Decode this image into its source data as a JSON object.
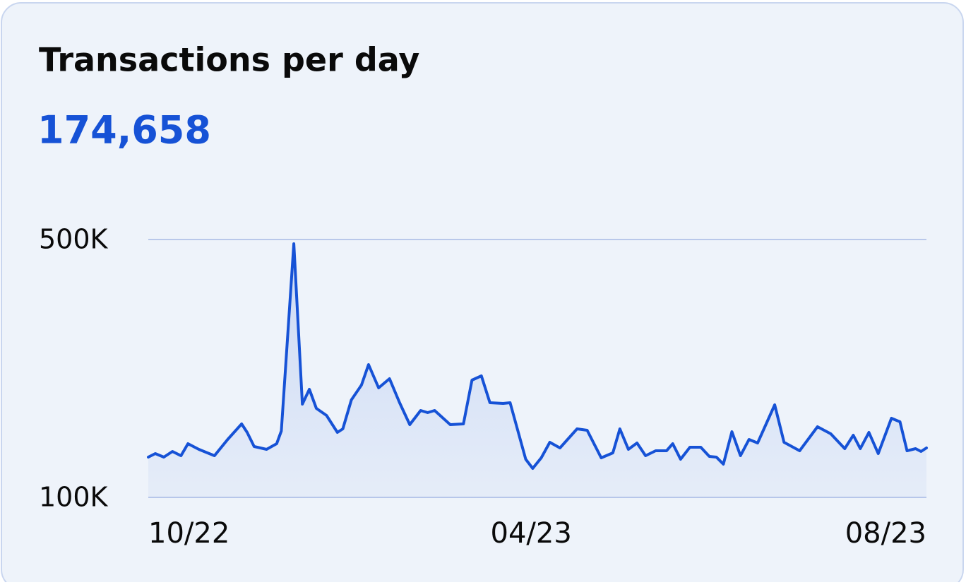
{
  "chart_data": {
    "type": "line",
    "title": "Transactions per day",
    "subtitle": "174,658",
    "x": [
      0,
      0.9,
      2,
      3.1,
      4.2,
      5.1,
      6.5,
      8.5,
      10.2,
      12,
      12.7,
      13.6,
      15.2,
      16.5,
      17.1,
      18.7,
      19.8,
      20.7,
      21.6,
      22.9,
      24.3,
      25,
      26.1,
      27.4,
      28.3,
      29.6,
      31,
      32.3,
      33.6,
      35,
      35.9,
      36.8,
      38.8,
      40.5,
      41.6,
      42.8,
      43.9,
      45.6,
      46.5,
      48.5,
      49.4,
      50.5,
      51.6,
      52.9,
      55.1,
      56.4,
      58.2,
      59.7,
      60.6,
      61.7,
      62.8,
      63.9,
      65.2,
      66.6,
      67.4,
      68.4,
      69.6,
      71,
      72.1,
      73,
      73.9,
      75,
      76.1,
      77.2,
      78.3,
      80.5,
      81.7,
      83.7,
      86,
      87.7,
      89.5,
      90.6,
      91.5,
      92.6,
      93.8,
      95.5,
      96.6,
      97.5,
      98.6,
      99.3,
      100
    ],
    "series": [
      {
        "name": "Transactions",
        "color": "#1652d6",
        "values": [
          162500,
          167900,
          162500,
          171200,
          164700,
          183300,
          174500,
          164700,
          189900,
          214000,
          200800,
          178900,
          174500,
          183300,
          203000,
          493400,
          244700,
          267700,
          238100,
          227100,
          200800,
          206300,
          251200,
          274200,
          306000,
          269900,
          284100,
          246800,
          212900,
          234800,
          231500,
          234800,
          212900,
          214000,
          281900,
          288500,
          246800,
          245800,
          246800,
          159200,
          144900,
          161400,
          185500,
          176700,
          206300,
          204100,
          161400,
          169000,
          206300,
          174500,
          184400,
          164700,
          172300,
          172300,
          183300,
          159200,
          177800,
          177800,
          163600,
          162500,
          151500,
          201900,
          164700,
          189900,
          184400,
          243600,
          185500,
          172300,
          209600,
          198600,
          175600,
          196400,
          175600,
          200800,
          167900,
          222700,
          217300,
          172300,
          175600,
          171200,
          176700
        ]
      }
    ],
    "xlim": [
      0,
      100
    ],
    "xticks": [
      {
        "value": 0,
        "label": "10/22"
      },
      {
        "value": 49.2,
        "label": "04/23"
      },
      {
        "value": 100,
        "label": "08/23"
      }
    ],
    "ylim": [
      100000,
      500000
    ],
    "yticks": [
      {
        "value": 100000,
        "label": "100K"
      },
      {
        "value": 500000,
        "label": "500K"
      }
    ],
    "grid": true
  }
}
